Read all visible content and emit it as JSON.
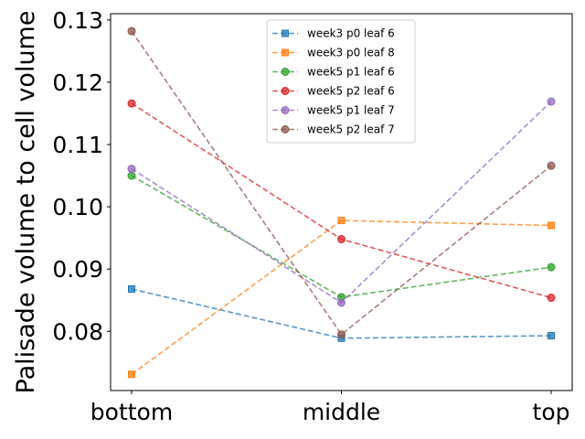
{
  "chart_data": {
    "type": "line",
    "title": "",
    "xlabel": "",
    "ylabel": "Palisade volume to cell volume",
    "categories": [
      "bottom",
      "middle",
      "top"
    ],
    "ylim": [
      0.0705,
      0.131
    ],
    "yticks": [
      0.08,
      0.09,
      0.1,
      0.11,
      0.12,
      0.13
    ],
    "ytick_labels": [
      "0.08",
      "0.09",
      "0.10",
      "0.11",
      "0.12",
      "0.13"
    ],
    "grid": false,
    "legend_position": "top-center",
    "series": [
      {
        "name": "week3 p0 leaf 6",
        "color": "#1f77b4",
        "marker": "square",
        "values": [
          0.0868,
          0.0789,
          0.0793
        ]
      },
      {
        "name": "week3 p0 leaf 8",
        "color": "#ff7f0e",
        "marker": "square",
        "values": [
          0.0731,
          0.0978,
          0.097
        ]
      },
      {
        "name": "week5 p1 leaf 6",
        "color": "#2ca02c",
        "marker": "circle",
        "values": [
          0.105,
          0.0855,
          0.0903
        ]
      },
      {
        "name": "week5 p2 leaf 6",
        "color": "#d62728",
        "marker": "circle",
        "values": [
          0.1166,
          0.0948,
          0.0854
        ]
      },
      {
        "name": "week5 p1 leaf 7",
        "color": "#9467bd",
        "marker": "circle",
        "values": [
          0.1061,
          0.0846,
          0.1169
        ]
      },
      {
        "name": "week5 p2 leaf 7",
        "color": "#8c564b",
        "marker": "circle",
        "values": [
          0.1282,
          0.0795,
          0.1066
        ]
      }
    ]
  }
}
